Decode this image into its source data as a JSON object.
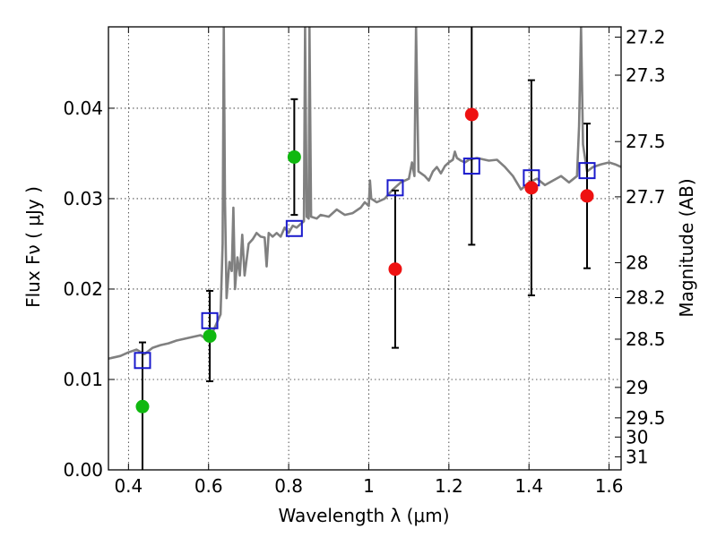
{
  "chart_data": {
    "type": "scatter",
    "xlabel": "Wavelength  λ (μm)",
    "ylabel": "Flux  Fν  ( μJy )",
    "ylabel_right": "Magnitude (AB)",
    "xlim": [
      0.35,
      1.63
    ],
    "ylim": [
      0.0,
      0.049
    ],
    "grid": true,
    "x_ticks": [
      {
        "value": 0.4,
        "label": "0.4"
      },
      {
        "value": 0.6,
        "label": "0.6"
      },
      {
        "value": 0.8,
        "label": "0.8"
      },
      {
        "value": 1.0,
        "label": "1"
      },
      {
        "value": 1.2,
        "label": "1.2"
      },
      {
        "value": 1.4,
        "label": "1.4"
      },
      {
        "value": 1.6,
        "label": "1.6"
      }
    ],
    "y_ticks": [
      {
        "value": 0.0,
        "label": "0.00"
      },
      {
        "value": 0.01,
        "label": "0.01"
      },
      {
        "value": 0.02,
        "label": "0.02"
      },
      {
        "value": 0.03,
        "label": "0.03"
      },
      {
        "value": 0.04,
        "label": "0.04"
      }
    ],
    "right_ticks": [
      {
        "value": 27.2,
        "label": "27.2"
      },
      {
        "value": 27.3,
        "label": "27.3"
      },
      {
        "value": 27.5,
        "label": "27.5"
      },
      {
        "value": 27.7,
        "label": "27.7"
      },
      {
        "value": 28,
        "label": "28"
      },
      {
        "value": 28.2,
        "label": "28.2"
      },
      {
        "value": 28.5,
        "label": "28.5"
      },
      {
        "value": 29,
        "label": "29"
      },
      {
        "value": 29.5,
        "label": "29.5"
      },
      {
        "value": 30,
        "label": "30"
      },
      {
        "value": 31,
        "label": "31"
      }
    ],
    "spectrum": {
      "color": "#808080",
      "points": [
        [
          0.35,
          0.0123
        ],
        [
          0.38,
          0.0126
        ],
        [
          0.4,
          0.013
        ],
        [
          0.42,
          0.0133
        ],
        [
          0.44,
          0.0128
        ],
        [
          0.46,
          0.0135
        ],
        [
          0.48,
          0.0138
        ],
        [
          0.5,
          0.014
        ],
        [
          0.52,
          0.0143
        ],
        [
          0.54,
          0.0145
        ],
        [
          0.56,
          0.0147
        ],
        [
          0.58,
          0.0149
        ],
        [
          0.59,
          0.0146
        ],
        [
          0.6,
          0.015
        ],
        [
          0.61,
          0.0152
        ],
        [
          0.62,
          0.0162
        ],
        [
          0.63,
          0.0172
        ],
        [
          0.635,
          0.025
        ],
        [
          0.638,
          0.049
        ],
        [
          0.641,
          0.03
        ],
        [
          0.645,
          0.019
        ],
        [
          0.652,
          0.023
        ],
        [
          0.658,
          0.022
        ],
        [
          0.662,
          0.029
        ],
        [
          0.666,
          0.02
        ],
        [
          0.672,
          0.0235
        ],
        [
          0.678,
          0.0215
        ],
        [
          0.684,
          0.026
        ],
        [
          0.69,
          0.0215
        ],
        [
          0.7,
          0.025
        ],
        [
          0.71,
          0.0255
        ],
        [
          0.72,
          0.0262
        ],
        [
          0.73,
          0.0258
        ],
        [
          0.74,
          0.0257
        ],
        [
          0.745,
          0.0225
        ],
        [
          0.75,
          0.0262
        ],
        [
          0.76,
          0.0258
        ],
        [
          0.77,
          0.0262
        ],
        [
          0.78,
          0.0258
        ],
        [
          0.79,
          0.0268
        ],
        [
          0.8,
          0.0262
        ],
        [
          0.81,
          0.027
        ],
        [
          0.82,
          0.0268
        ],
        [
          0.83,
          0.0272
        ],
        [
          0.838,
          0.0275
        ],
        [
          0.841,
          0.049
        ],
        [
          0.845,
          0.028
        ],
        [
          0.85,
          0.0278
        ],
        [
          0.852,
          0.049
        ],
        [
          0.856,
          0.028
        ],
        [
          0.87,
          0.0278
        ],
        [
          0.88,
          0.0282
        ],
        [
          0.9,
          0.028
        ],
        [
          0.92,
          0.0288
        ],
        [
          0.94,
          0.0282
        ],
        [
          0.96,
          0.0284
        ],
        [
          0.98,
          0.029
        ],
        [
          0.99,
          0.0296
        ],
        [
          1.0,
          0.0292
        ],
        [
          1.003,
          0.032
        ],
        [
          1.006,
          0.03
        ],
        [
          1.02,
          0.0296
        ],
        [
          1.04,
          0.03
        ],
        [
          1.06,
          0.031
        ],
        [
          1.08,
          0.0318
        ],
        [
          1.1,
          0.0322
        ],
        [
          1.108,
          0.034
        ],
        [
          1.114,
          0.0325
        ],
        [
          1.118,
          0.049
        ],
        [
          1.124,
          0.033
        ],
        [
          1.14,
          0.0325
        ],
        [
          1.15,
          0.032
        ],
        [
          1.16,
          0.033
        ],
        [
          1.17,
          0.0335
        ],
        [
          1.18,
          0.0328
        ],
        [
          1.19,
          0.0336
        ],
        [
          1.2,
          0.034
        ],
        [
          1.21,
          0.0343
        ],
        [
          1.215,
          0.0352
        ],
        [
          1.22,
          0.0345
        ],
        [
          1.23,
          0.0342
        ],
        [
          1.24,
          0.034
        ],
        [
          1.25,
          0.0343
        ],
        [
          1.27,
          0.0345
        ],
        [
          1.3,
          0.0342
        ],
        [
          1.32,
          0.0343
        ],
        [
          1.34,
          0.0335
        ],
        [
          1.36,
          0.0325
        ],
        [
          1.38,
          0.031
        ],
        [
          1.4,
          0.0318
        ],
        [
          1.42,
          0.0322
        ],
        [
          1.44,
          0.0315
        ],
        [
          1.46,
          0.032
        ],
        [
          1.48,
          0.0325
        ],
        [
          1.5,
          0.0318
        ],
        [
          1.52,
          0.0325
        ],
        [
          1.525,
          0.038
        ],
        [
          1.53,
          0.049
        ],
        [
          1.535,
          0.036
        ],
        [
          1.545,
          0.033
        ],
        [
          1.56,
          0.0335
        ],
        [
          1.58,
          0.0338
        ],
        [
          1.6,
          0.034
        ],
        [
          1.615,
          0.0338
        ],
        [
          1.63,
          0.0335
        ]
      ]
    },
    "photometry_green": {
      "color": "#10b810",
      "points": [
        {
          "x": 0.435,
          "y": 0.007,
          "err": 0.0071
        },
        {
          "x": 0.603,
          "y": 0.0148,
          "err": 0.005
        },
        {
          "x": 0.814,
          "y": 0.0346,
          "err": 0.0064
        }
      ]
    },
    "photometry_red": {
      "color": "#ee1111",
      "points": [
        {
          "x": 1.066,
          "y": 0.0222,
          "err": 0.0087
        },
        {
          "x": 1.257,
          "y": 0.0393,
          "err": 0.0144
        },
        {
          "x": 1.406,
          "y": 0.0312,
          "err": 0.0119
        },
        {
          "x": 1.545,
          "y": 0.0303,
          "err": 0.008
        }
      ]
    },
    "model_squares": {
      "color": "#1a1acc",
      "points": [
        {
          "x": 0.435,
          "y": 0.0121
        },
        {
          "x": 0.603,
          "y": 0.0165
        },
        {
          "x": 0.814,
          "y": 0.0267
        },
        {
          "x": 1.066,
          "y": 0.0312
        },
        {
          "x": 1.257,
          "y": 0.0336
        },
        {
          "x": 1.406,
          "y": 0.0323
        },
        {
          "x": 1.545,
          "y": 0.0331
        }
      ]
    }
  }
}
